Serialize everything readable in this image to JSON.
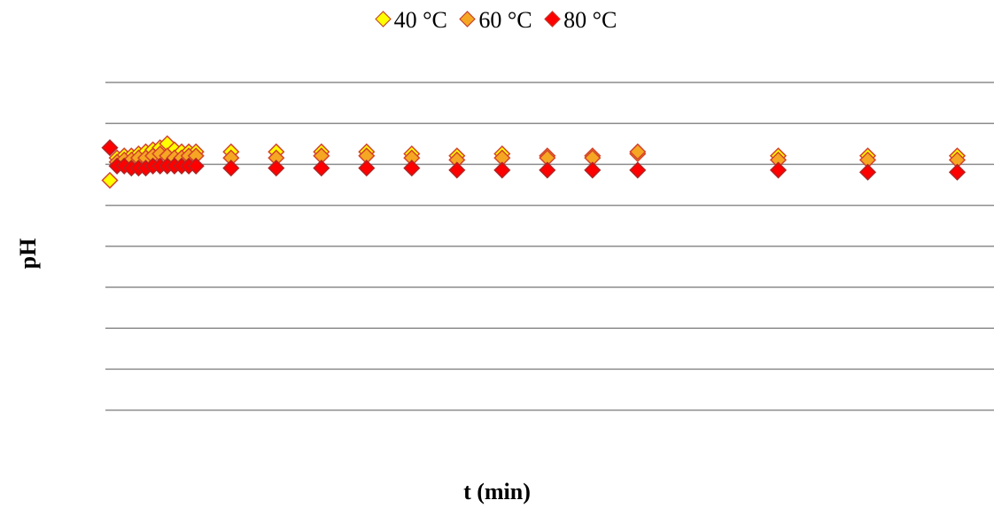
{
  "chart_data": {
    "type": "scatter",
    "title": "",
    "xlabel": "t (min)",
    "ylabel": "pH",
    "grid": true,
    "legend_position": "top-center",
    "gridline_count": 9,
    "series": [
      {
        "name": "40 °C",
        "color": "#ffff00",
        "edge": "#d4432a",
        "points": [
          [
            0,
            0.92
          ],
          [
            1,
            1.03
          ],
          [
            2,
            1.04
          ],
          [
            3,
            1.04
          ],
          [
            4,
            1.05
          ],
          [
            5,
            1.06
          ],
          [
            6,
            1.07
          ],
          [
            7,
            1.08
          ],
          [
            8,
            1.1
          ],
          [
            9,
            1.07
          ],
          [
            10,
            1.06
          ],
          [
            11,
            1.06
          ],
          [
            12,
            1.06
          ],
          [
            20,
            1.06
          ],
          [
            30,
            1.06
          ],
          [
            40,
            1.06
          ],
          [
            50,
            1.06
          ],
          [
            60,
            1.05
          ],
          [
            70,
            1.04
          ],
          [
            80,
            1.05
          ],
          [
            90,
            1.04
          ],
          [
            100,
            1.04
          ],
          [
            110,
            1.05
          ],
          [
            140,
            1.04
          ],
          [
            160,
            1.04
          ],
          [
            180,
            1.04
          ]
        ]
      },
      {
        "name": "60 °C",
        "color": "#f5a623",
        "edge": "#d4432a",
        "points": [
          [
            1,
            1.01
          ],
          [
            2,
            1.02
          ],
          [
            3,
            1.02
          ],
          [
            4,
            1.03
          ],
          [
            5,
            1.03
          ],
          [
            6,
            1.04
          ],
          [
            7,
            1.05
          ],
          [
            8,
            1.04
          ],
          [
            9,
            1.03
          ],
          [
            10,
            1.03
          ],
          [
            11,
            1.04
          ],
          [
            12,
            1.04
          ],
          [
            20,
            1.03
          ],
          [
            30,
            1.03
          ],
          [
            40,
            1.04
          ],
          [
            50,
            1.04
          ],
          [
            60,
            1.03
          ],
          [
            70,
            1.02
          ],
          [
            80,
            1.03
          ],
          [
            90,
            1.03
          ],
          [
            100,
            1.03
          ],
          [
            110,
            1.06
          ],
          [
            140,
            1.02
          ],
          [
            160,
            1.02
          ],
          [
            180,
            1.02
          ]
        ]
      },
      {
        "name": "80 °C",
        "color": "#ff0000",
        "edge": "#b22222",
        "points": [
          [
            0,
            1.08
          ],
          [
            1,
            0.99
          ],
          [
            2,
            0.99
          ],
          [
            3,
            0.98
          ],
          [
            4,
            0.98
          ],
          [
            5,
            0.98
          ],
          [
            6,
            0.99
          ],
          [
            7,
            0.99
          ],
          [
            8,
            0.99
          ],
          [
            9,
            0.99
          ],
          [
            10,
            0.99
          ],
          [
            11,
            0.99
          ],
          [
            12,
            0.99
          ],
          [
            20,
            0.98
          ],
          [
            30,
            0.98
          ],
          [
            40,
            0.98
          ],
          [
            50,
            0.98
          ],
          [
            60,
            0.98
          ],
          [
            70,
            0.97
          ],
          [
            80,
            0.97
          ],
          [
            90,
            0.97
          ],
          [
            100,
            0.97
          ],
          [
            110,
            0.97
          ],
          [
            140,
            0.97
          ],
          [
            160,
            0.96
          ],
          [
            180,
            0.96
          ]
        ]
      }
    ]
  }
}
